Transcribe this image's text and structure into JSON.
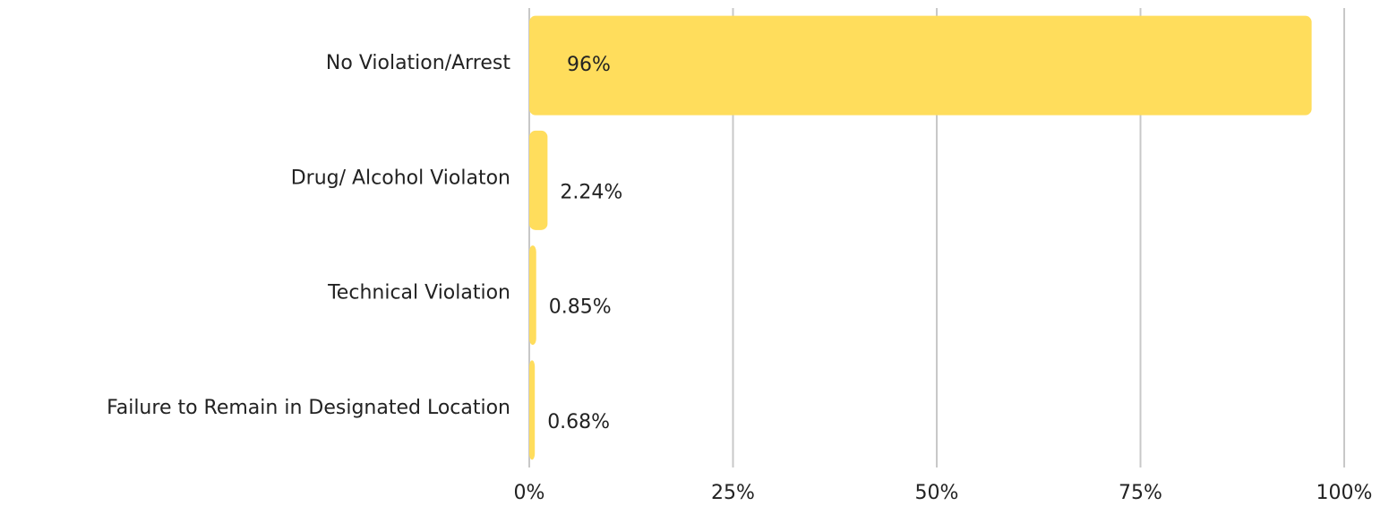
{
  "chart_data": {
    "type": "bar",
    "orientation": "horizontal",
    "categories": [
      "No Violation/Arrest",
      "Drug/ Alcohol Violaton",
      "Technical Violation",
      "Failure to Remain in Designated Location"
    ],
    "values": [
      96,
      2.24,
      0.85,
      0.68
    ],
    "value_labels": [
      "96%",
      "2.24%",
      "0.85%",
      "0.68%"
    ],
    "color": "#ffdd5c",
    "xlim": [
      0,
      100
    ],
    "xticks": [
      {
        "value": 0,
        "label": "0%"
      },
      {
        "value": 25,
        "label": "25%"
      },
      {
        "value": 50,
        "label": "50%"
      },
      {
        "value": 75,
        "label": "75%"
      },
      {
        "value": 100,
        "label": "100%"
      }
    ],
    "grid": true
  }
}
